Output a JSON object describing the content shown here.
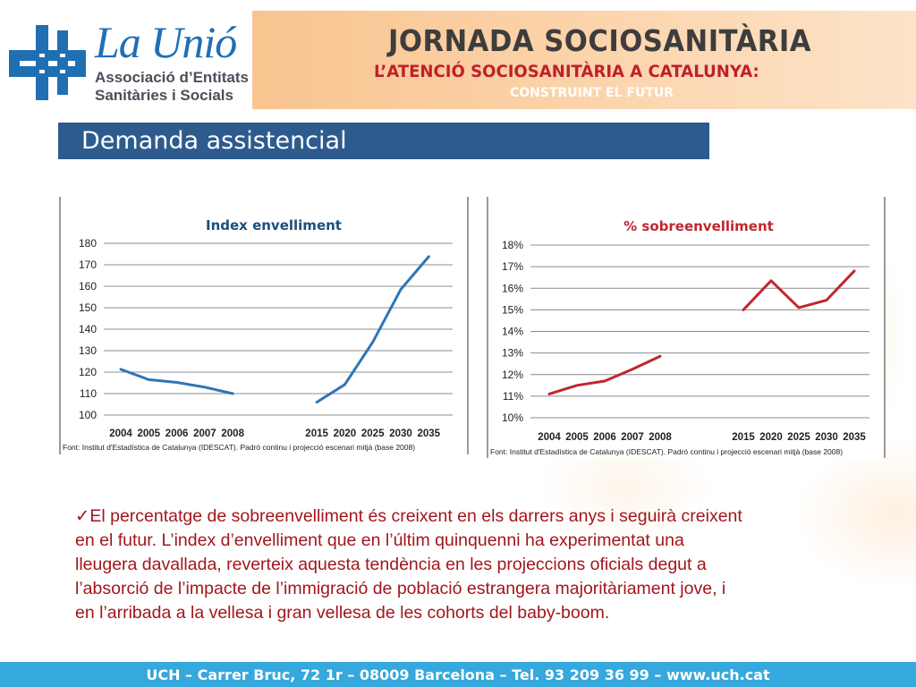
{
  "header": {
    "logo_name": "La Unió",
    "logo_sub_line1": "Associació d’Entitats",
    "logo_sub_line2": "Sanitàries i Socials",
    "banner_title": "JORNADA SOCIOSANITÀRIA",
    "banner_subtitle": "L’ATENCIÓ SOCIOSANITÀRIA A CATALUNYA:",
    "banner_tagline": "CONSTRUINT EL FUTUR"
  },
  "section": {
    "title": "Demanda assistencial"
  },
  "colors": {
    "brand_blue": "#1f6fb3",
    "section_bar": "#2e5b8e",
    "footer": "#35a8dd",
    "chart1_line": "#2e75b6",
    "chart2_line": "#c0272d",
    "body_text": "#a3161c"
  },
  "chart_data": [
    {
      "type": "line",
      "title": "Index envelliment",
      "title_color": "#1f4e79",
      "line_color": "#2e75b6",
      "categories": [
        "2004",
        "2005",
        "2006",
        "2007",
        "2008",
        "",
        "",
        "2015",
        "2020",
        "2025",
        "2030",
        "2035"
      ],
      "segments": [
        {
          "x_index": [
            0,
            1,
            2,
            3,
            4
          ],
          "values": [
            121.3,
            116.5,
            115.2,
            113.0,
            110.0
          ]
        },
        {
          "x_index": [
            7,
            8,
            9,
            10,
            11
          ],
          "values": [
            106.0,
            114.2,
            134.0,
            158.5,
            173.8
          ]
        }
      ],
      "ylim": [
        100,
        180
      ],
      "yticks": [
        100,
        110,
        120,
        130,
        140,
        150,
        160,
        170,
        180
      ],
      "ytick_labels": [
        "100",
        "110",
        "120",
        "130",
        "140",
        "150",
        "160",
        "170",
        "180"
      ],
      "grid": true,
      "source": "Font: Institut d'Estadística de Catalunya (IDESCAT). Padró continu i projecció escenari mitjà (base 2008)"
    },
    {
      "type": "line",
      "title": "% sobreenvelliment",
      "title_color": "#c0272d",
      "line_color": "#c0272d",
      "categories": [
        "2004",
        "2005",
        "2006",
        "2007",
        "2008",
        "",
        "",
        "2015",
        "2020",
        "2025",
        "2030",
        "2035"
      ],
      "segments": [
        {
          "x_index": [
            0,
            1,
            2,
            3,
            4
          ],
          "values": [
            11.1,
            11.5,
            11.7,
            12.25,
            12.85
          ]
        },
        {
          "x_index": [
            7,
            8,
            9,
            10,
            11
          ],
          "values": [
            15.0,
            16.35,
            15.1,
            15.45,
            16.8
          ]
        }
      ],
      "ylim": [
        10,
        18
      ],
      "yticks": [
        10,
        11,
        12,
        13,
        14,
        15,
        16,
        17,
        18
      ],
      "ytick_labels": [
        "10%",
        "11%",
        "12%",
        "13%",
        "14%",
        "15%",
        "16%",
        "17%",
        "18%"
      ],
      "grid": true,
      "source": "Font: Institut d'Estadística de Catalunya (IDESCAT). Padró continu i projecció escenari mitjà (base 2008)"
    }
  ],
  "body": {
    "checkmark": "✓",
    "lines": [
      "El percentatge de sobreenvelliment és creixent en els darrers anys i seguirà creixent",
      "en el futur. L’index d’envelliment que en l’últim quinquenni ha experimentat una",
      "lleugera davallada, reverteix aquesta tendència en les projeccions oficials degut a",
      "l’absorció de l’impacte de l’immigració de població estrangera majoritàriament jove, i",
      "en l’arribada a la vellesa i gran vellesa de les cohorts del baby-boom."
    ]
  },
  "footer": {
    "text": "UCH – Carrer Bruc, 72 1r – 08009 Barcelona – Tel. 93 209 36 99 – www.uch.cat"
  }
}
